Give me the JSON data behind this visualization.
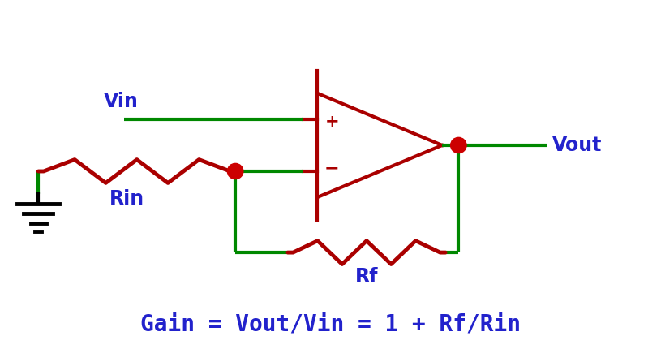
{
  "wire_color": "#008800",
  "resistor_color": "#aa0000",
  "opamp_color": "#aa0000",
  "dot_color": "#cc0000",
  "label_color": "#2222cc",
  "ground_color": "#000000",
  "formula": "Gain = Vout/Vin = 1 + Rf/Rin",
  "formula_color": "#2222cc",
  "formula_fontsize": 20,
  "label_fontsize": 17,
  "background": "#ffffff",
  "lw_wire": 3.0,
  "lw_opamp": 3.0,
  "lw_resistor": 3.5
}
